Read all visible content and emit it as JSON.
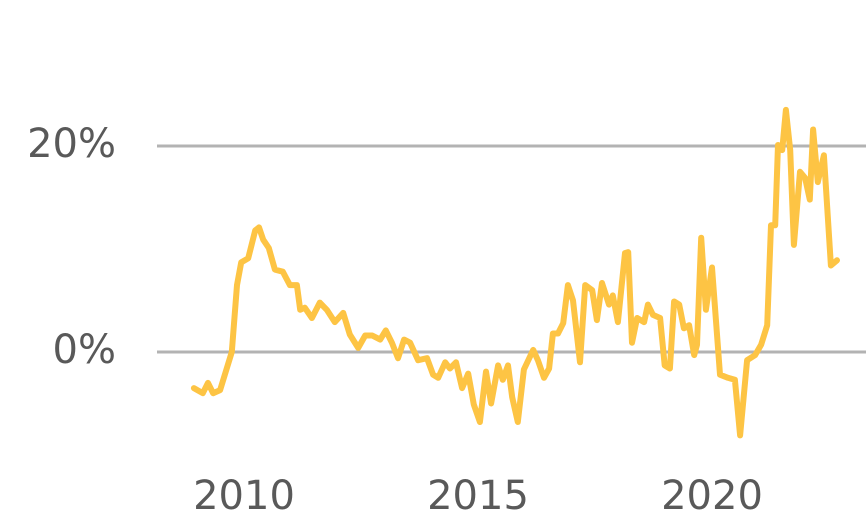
{
  "chart_data": {
    "type": "line",
    "x": [
      2008.93,
      2009.12,
      2009.23,
      2009.34,
      2009.49,
      2009.74,
      2009.85,
      2009.94,
      2010.09,
      2010.24,
      2010.32,
      2010.41,
      2010.53,
      2010.66,
      2010.83,
      2010.98,
      2011.13,
      2011.2,
      2011.3,
      2011.45,
      2011.62,
      2011.77,
      2011.94,
      2012.12,
      2012.26,
      2012.44,
      2012.59,
      2012.74,
      2012.91,
      2013.03,
      2013.16,
      2013.29,
      2013.42,
      2013.55,
      2013.72,
      2013.91,
      2014.04,
      2014.15,
      2014.3,
      2014.4,
      2014.53,
      2014.66,
      2014.79,
      2014.91,
      2015.04,
      2015.17,
      2015.28,
      2015.43,
      2015.53,
      2015.64,
      2015.73,
      2015.85,
      2015.98,
      2016.18,
      2016.28,
      2016.41,
      2016.52,
      2016.6,
      2016.71,
      2016.82,
      2016.92,
      2017.03,
      2017.18,
      2017.29,
      2017.44,
      2017.54,
      2017.65,
      2017.8,
      2017.88,
      2017.99,
      2018.14,
      2018.21,
      2018.29,
      2018.4,
      2018.55,
      2018.63,
      2018.74,
      2018.89,
      2018.99,
      2019.1,
      2019.19,
      2019.3,
      2019.4,
      2019.51,
      2019.62,
      2019.68,
      2019.77,
      2019.87,
      2020.0,
      2020.17,
      2020.34,
      2020.49,
      2020.6,
      2020.75,
      2020.92,
      2021.05,
      2021.18,
      2021.26,
      2021.35,
      2021.41,
      2021.5,
      2021.58,
      2021.67,
      2021.75,
      2021.88,
      2021.99,
      2022.09,
      2022.16,
      2022.26,
      2022.39,
      2022.54,
      2022.67
    ],
    "series": [
      {
        "color": "#fdc444",
        "values": [
          -3.5,
          -4.0,
          -3.0,
          -4.0,
          -3.7,
          0,
          6.5,
          8.7,
          9.1,
          11.8,
          12.1,
          10.9,
          10.1,
          8.0,
          7.8,
          6.5,
          6.5,
          4.1,
          4.3,
          3.3,
          4.8,
          4.1,
          2.9,
          3.8,
          1.7,
          0.4,
          1.6,
          1.6,
          1.2,
          2.1,
          0.9,
          -0.6,
          1.2,
          0.9,
          -0.8,
          -0.6,
          -2.2,
          -2.5,
          -1.0,
          -1.6,
          -1.0,
          -3.5,
          -2.1,
          -5.1,
          -6.8,
          -1.9,
          -5.0,
          -1.3,
          -2.7,
          -1.3,
          -4.4,
          -6.8,
          -1.7,
          0.2,
          -0.8,
          -2.5,
          -1.6,
          1.8,
          1.8,
          2.8,
          6.5,
          5.0,
          -1.0,
          6.5,
          6.0,
          3.1,
          6.7,
          4.6,
          5.5,
          2.9,
          9.6,
          9.7,
          0.9,
          3.3,
          2.9,
          4.6,
          3.6,
          3.3,
          -1.3,
          -1.6,
          4.9,
          4.6,
          2.3,
          2.6,
          -0.3,
          0.7,
          11.1,
          4.1,
          8.2,
          -2.2,
          -2.5,
          -2.7,
          -8.1,
          -0.8,
          -0.3,
          0.7,
          2.6,
          12.3,
          12.3,
          20.1,
          19.6,
          23.5,
          19.6,
          10.4,
          17.5,
          16.9,
          14.8,
          21.6,
          16.5,
          19.1,
          8.4,
          8.9
        ]
      }
    ],
    "xlim": [
      2008,
      2023
    ],
    "xticks": [
      2010,
      2015,
      2020
    ],
    "ylim": [
      -10,
      25
    ],
    "yticks": [
      {
        "value": 0,
        "label": "0%"
      },
      {
        "value": 20,
        "label": "20%"
      }
    ],
    "grid": true
  }
}
